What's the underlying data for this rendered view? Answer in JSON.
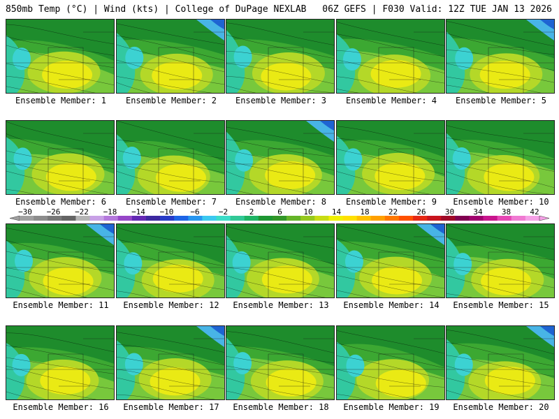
{
  "header": {
    "title_left": "850mb Temp (°C) | Wind (kts) | College of DuPage NEXLAB",
    "title_right": "06Z GEFS | F030 Valid: 12Z TUE JAN 13 2026"
  },
  "panels": [
    {
      "label": "Ensemble Member: 1"
    },
    {
      "label": "Ensemble Member: 2"
    },
    {
      "label": "Ensemble Member: 3"
    },
    {
      "label": "Ensemble Member: 4"
    },
    {
      "label": "Ensemble Member: 5"
    },
    {
      "label": "Ensemble Member: 6"
    },
    {
      "label": "Ensemble Member: 7"
    },
    {
      "label": "Ensemble Member: 8"
    },
    {
      "label": "Ensemble Member: 9"
    },
    {
      "label": "Ensemble Member: 10"
    },
    {
      "label": "Ensemble Member: 11"
    },
    {
      "label": "Ensemble Member: 12"
    },
    {
      "label": "Ensemble Member: 13"
    },
    {
      "label": "Ensemble Member: 14"
    },
    {
      "label": "Ensemble Member: 15"
    },
    {
      "label": "Ensemble Member: 16"
    },
    {
      "label": "Ensemble Member: 17"
    },
    {
      "label": "Ensemble Member: 18"
    },
    {
      "label": "Ensemble Member: 19"
    },
    {
      "label": "Ensemble Member: 20"
    }
  ],
  "colorbar": {
    "tick_labels": [
      "−30",
      "−26",
      "−22",
      "−18",
      "−14",
      "−10",
      "−6",
      "−2",
      "2",
      "6",
      "10",
      "14",
      "18",
      "22",
      "26",
      "30",
      "34",
      "38",
      "42"
    ],
    "colors": [
      "#a0a0a0",
      "#8c8c8c",
      "#787878",
      "#646464",
      "#b4b4b4",
      "#c8a0e6",
      "#b478dc",
      "#9646c8",
      "#6428b4",
      "#3c28a0",
      "#283cc8",
      "#1e64e6",
      "#2896f0",
      "#3cc8f0",
      "#3cdcc8",
      "#32c896",
      "#1eb464",
      "#1e9632",
      "#329628",
      "#64b428",
      "#96c81e",
      "#c8dc14",
      "#f0f000",
      "#ffe000",
      "#ffc000",
      "#ffa000",
      "#ff7800",
      "#ff5000",
      "#e62814",
      "#c8141e",
      "#a00a28",
      "#800050",
      "#a0006e",
      "#c8148c",
      "#e646b4",
      "#f07ad2",
      "#f5a0e6"
    ],
    "field_colors": {
      "dark_green": "#1e8c2c",
      "green": "#3ca832",
      "light_green": "#78c83c",
      "yellow_green": "#b4d828",
      "yellow": "#eaea14",
      "aqua": "#32c8a0",
      "cyan": "#3cd2d2",
      "sky": "#48b4e6",
      "blue": "#1e64d2"
    }
  }
}
